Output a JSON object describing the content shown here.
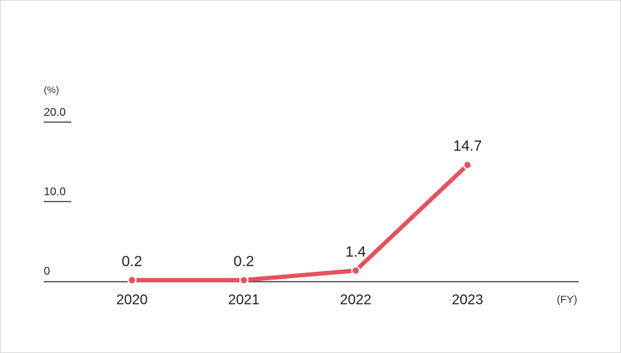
{
  "chart_data": {
    "type": "line",
    "title": "",
    "xlabel": "(FY)",
    "ylabel": "(%)",
    "categories": [
      "2020",
      "2021",
      "2022",
      "2023"
    ],
    "series": [
      {
        "values": [
          0.2,
          0.2,
          1.4,
          14.7
        ],
        "labels": [
          "0.2",
          "0.2",
          "1.4",
          "14.7"
        ],
        "color": "#e5515e"
      }
    ],
    "ylim": [
      0,
      20
    ],
    "yticks": [
      {
        "value": 0,
        "label": "0"
      },
      {
        "value": 10,
        "label": "10.0"
      },
      {
        "value": 20,
        "label": "20.0"
      }
    ],
    "grid": false,
    "legend": "none",
    "axis_color": "#333333"
  }
}
